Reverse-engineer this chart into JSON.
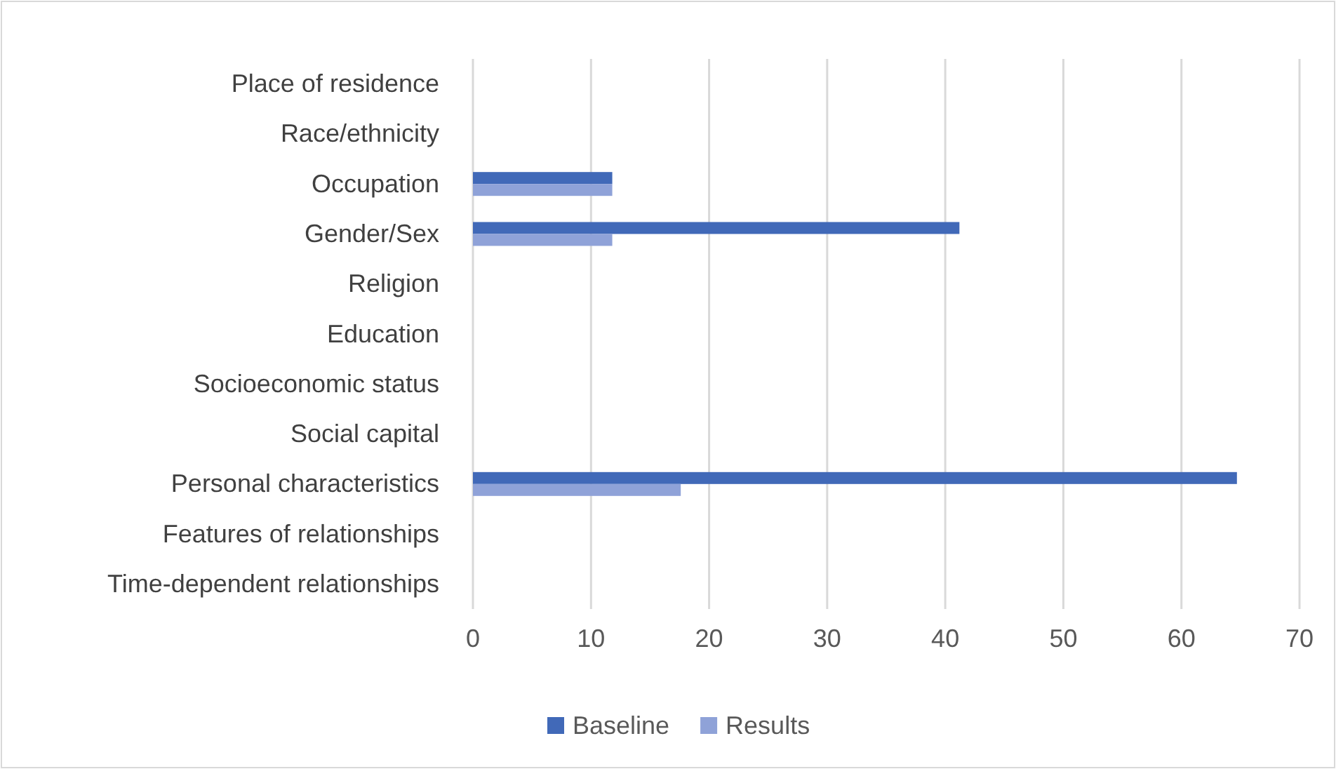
{
  "chart_data": {
    "type": "bar",
    "orientation": "horizontal",
    "categories": [
      "Place of residence",
      "Race/ethnicity",
      "Occupation",
      "Gender/Sex",
      "Religion",
      "Education",
      "Socioeconomic status",
      "Social capital",
      "Personal characteristics",
      "Features of relationships",
      "Time-dependent relationships"
    ],
    "series": [
      {
        "name": "Baseline",
        "color": "#4169b8",
        "values": [
          0,
          0,
          11.8,
          41.2,
          0,
          0,
          0,
          0,
          64.7,
          0,
          0
        ]
      },
      {
        "name": "Results",
        "color": "#8fa2d8",
        "values": [
          0,
          0,
          11.8,
          11.8,
          0,
          0,
          0,
          0,
          17.6,
          0,
          0
        ]
      }
    ],
    "xlim": [
      0,
      70
    ],
    "xticks": [
      0,
      10,
      20,
      30,
      40,
      50,
      60,
      70
    ],
    "grid": "x",
    "legend": "bottom"
  }
}
